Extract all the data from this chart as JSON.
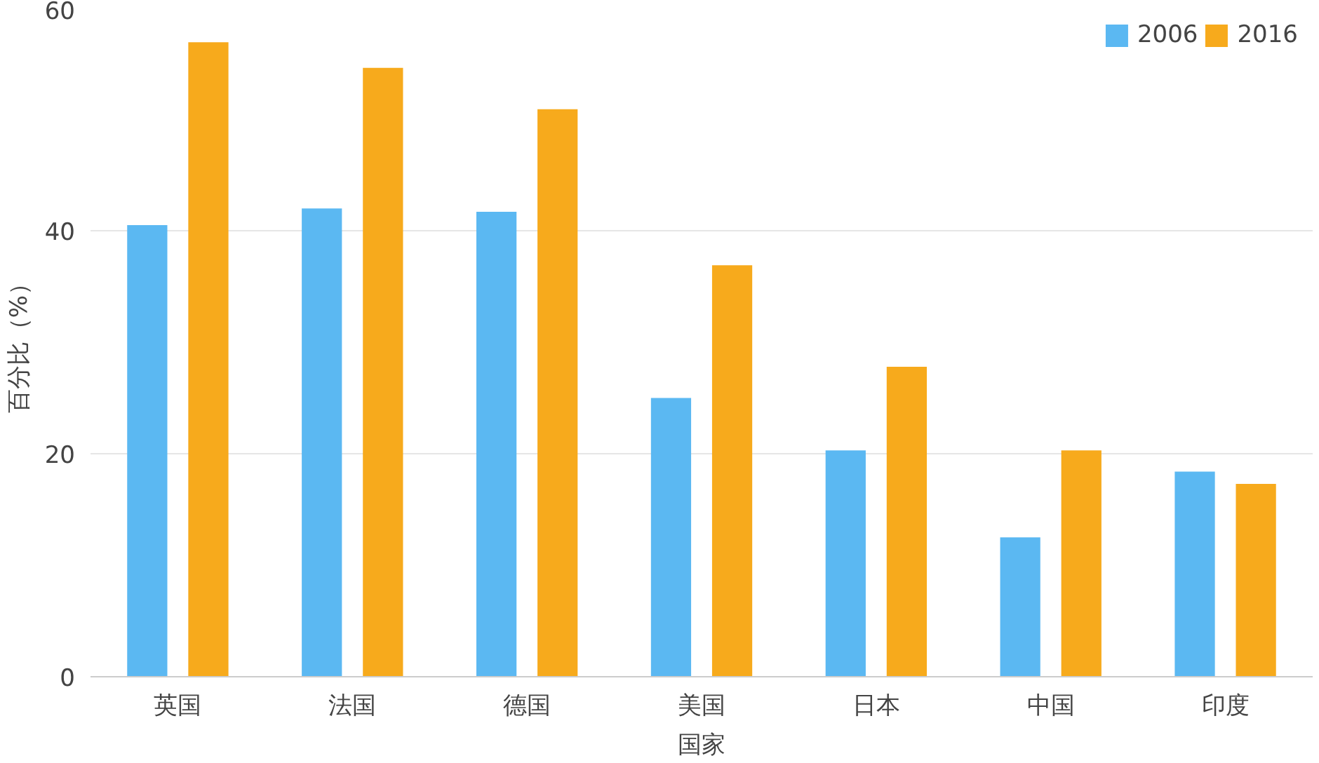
{
  "chart_data": {
    "type": "bar",
    "xlabel": "国家",
    "ylabel": "百分比（%）",
    "categories": [
      "英国",
      "法国",
      "德国",
      "美国",
      "日本",
      "中国",
      "印度"
    ],
    "series": [
      {
        "name": "2006",
        "color": "#5bb8f2",
        "values": [
          40.5,
          42.0,
          41.7,
          25.0,
          20.3,
          12.5,
          18.4
        ]
      },
      {
        "name": "2016",
        "color": "#f7aa1c",
        "values": [
          56.9,
          54.6,
          50.9,
          36.9,
          27.8,
          20.3,
          17.3
        ]
      }
    ],
    "ylim": [
      0,
      60
    ],
    "yticks": [
      0,
      20,
      40,
      60
    ],
    "grid": "y",
    "legend": "top right"
  }
}
